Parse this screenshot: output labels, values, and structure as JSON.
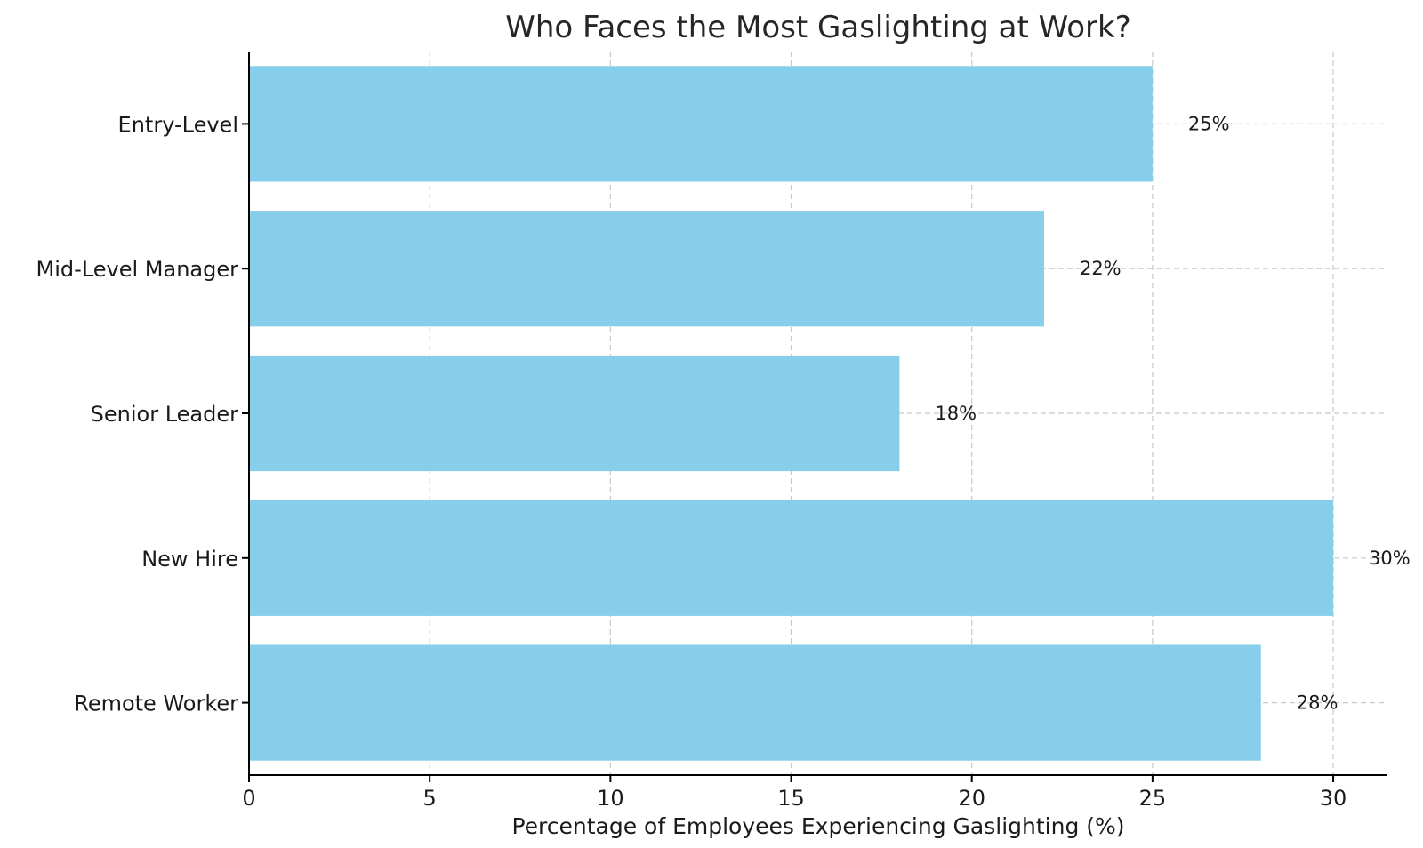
{
  "chart_data": {
    "type": "bar",
    "orientation": "horizontal",
    "title": "Who Faces the Most Gaslighting at Work?",
    "xlabel": "Percentage of Employees Experiencing Gaslighting (%)",
    "ylabel": "",
    "categories": [
      "Entry-Level",
      "Mid-Level Manager",
      "Senior Leader",
      "New Hire",
      "Remote Worker"
    ],
    "values": [
      25,
      22,
      18,
      30,
      28
    ],
    "data_labels": [
      "25%",
      "22%",
      "18%",
      "30%",
      "28%"
    ],
    "xlim": [
      0,
      31.5
    ],
    "xticks": [
      0,
      5,
      10,
      15,
      20,
      25,
      30
    ],
    "grid": true,
    "bar_color": "#87CEEB",
    "grid_color": "#c8c8c8"
  }
}
